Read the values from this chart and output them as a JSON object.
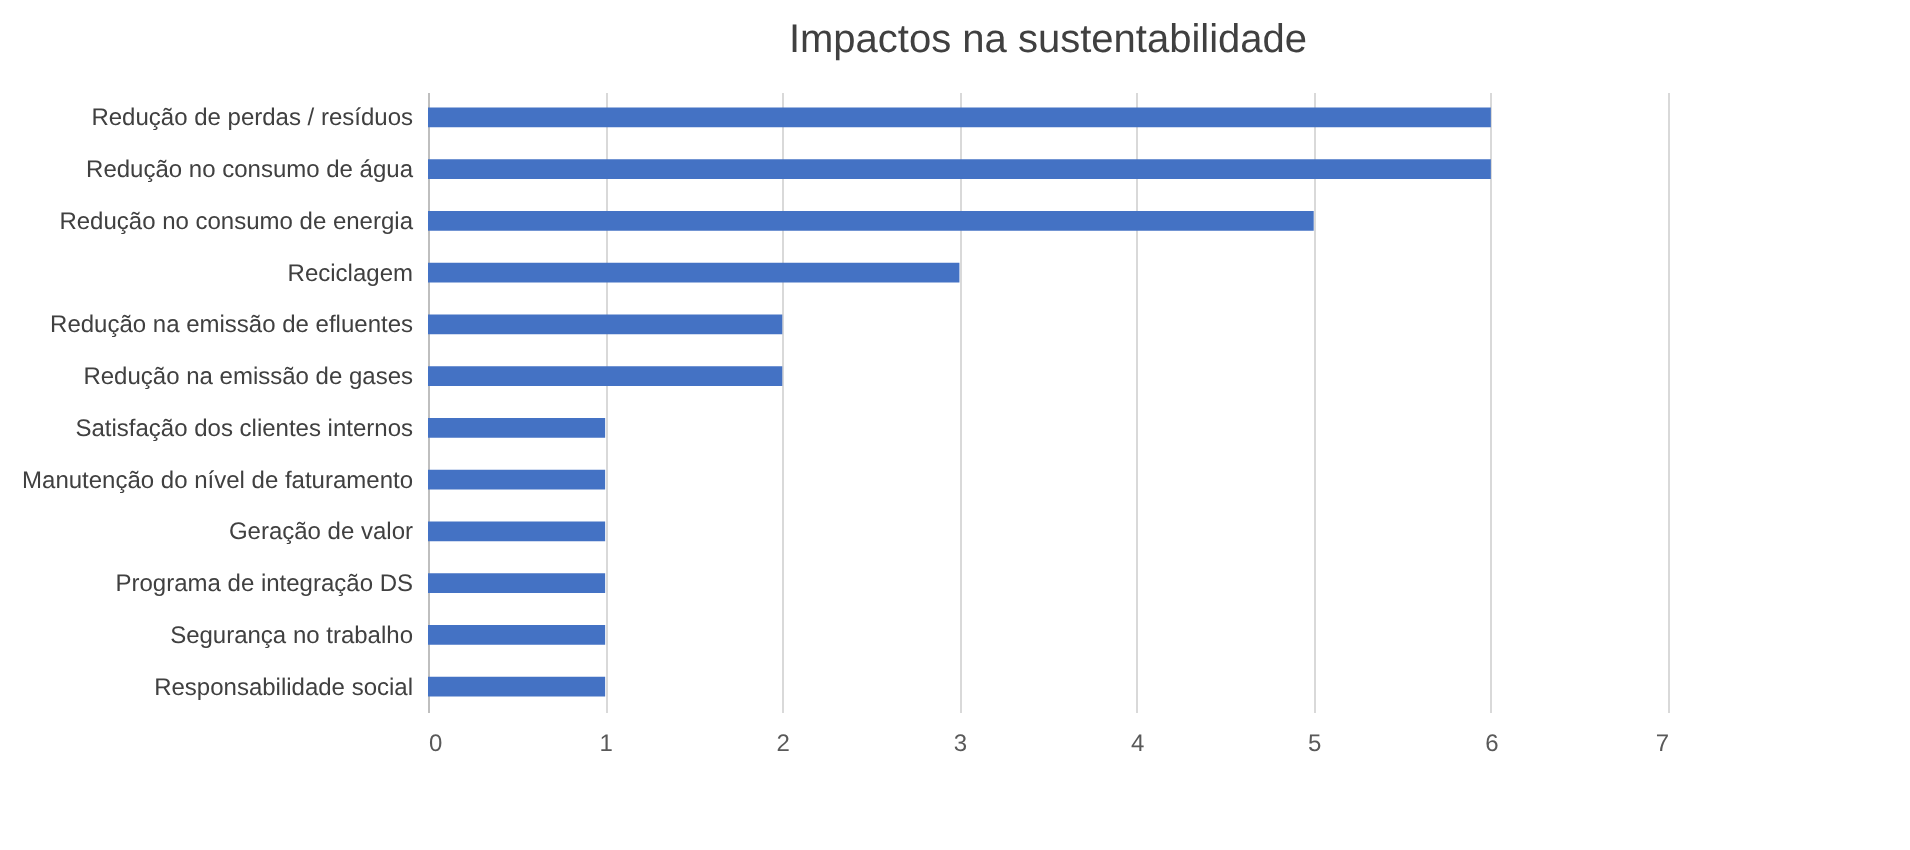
{
  "chart_data": {
    "type": "bar",
    "orientation": "horizontal",
    "title": "Impactos na sustentabilidade",
    "categories": [
      "Redução de perdas / resíduos",
      "Redução no consumo de água",
      "Redução no consumo de energia",
      "Reciclagem",
      "Redução na emissão de efluentes",
      "Redução na emissão de gases",
      "Satisfação dos clientes internos",
      "Manutenção do nível de faturamento",
      "Geração de valor",
      "Programa de integração DS",
      "Segurança no trabalho",
      "Responsabilidade social"
    ],
    "values": [
      6,
      6,
      5,
      3,
      2,
      2,
      1,
      1,
      1,
      1,
      1,
      1
    ],
    "color": "#4472c4",
    "xlim": [
      0,
      7
    ],
    "xticks": [
      0,
      1,
      2,
      3,
      4,
      5,
      6,
      7
    ],
    "grid": "x"
  }
}
